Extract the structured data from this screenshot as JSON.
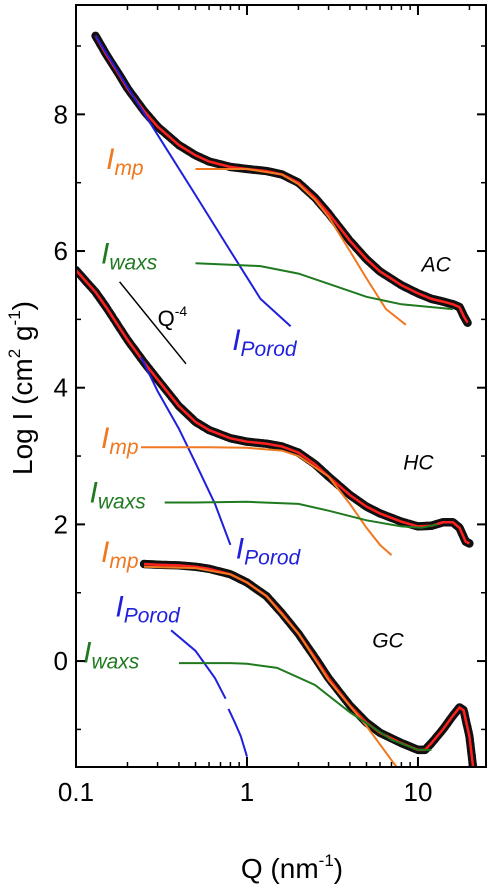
{
  "chart_data": {
    "type": "line",
    "x_scale": "log",
    "xlim": [
      0.1,
      25
    ],
    "ylim": [
      -1.55,
      9.6
    ],
    "xlabel": "Q (nm",
    "xlabel_sup": "-1",
    "xlabel_end": ")",
    "ylabel": "Log I (cm",
    "ylabel_sup1": "2",
    "ylabel_mid": " g",
    "ylabel_sup2": "-1",
    "ylabel_end": ")",
    "x_ticks": [
      {
        "value": 0.1,
        "label": "0.1"
      },
      {
        "value": 1,
        "label": "1"
      },
      {
        "value": 10,
        "label": "10"
      }
    ],
    "y_ticks": [
      {
        "value": 0,
        "label": "0"
      },
      {
        "value": 2,
        "label": "2"
      },
      {
        "value": 4,
        "label": "4"
      },
      {
        "value": 6,
        "label": "6"
      },
      {
        "value": 8,
        "label": "8"
      }
    ],
    "colors": {
      "data": "#000000",
      "fit": "#ff2020",
      "porod": "#1f1fdc",
      "mp": "#f07820",
      "waxs": "#1f7a1f",
      "slope": "#000000"
    },
    "samples": [
      {
        "name": "AC",
        "label_at": [
          10.5,
          5.7
        ],
        "data": [
          [
            0.13,
            9.15
          ],
          [
            0.15,
            8.88
          ],
          [
            0.18,
            8.57
          ],
          [
            0.2,
            8.38
          ],
          [
            0.25,
            8.05
          ],
          [
            0.3,
            7.82
          ],
          [
            0.4,
            7.55
          ],
          [
            0.5,
            7.4
          ],
          [
            0.6,
            7.31
          ],
          [
            0.8,
            7.23
          ],
          [
            1.0,
            7.2
          ],
          [
            1.3,
            7.17
          ],
          [
            1.6,
            7.12
          ],
          [
            2.0,
            7.0
          ],
          [
            2.5,
            6.78
          ],
          [
            3.0,
            6.55
          ],
          [
            4.0,
            6.15
          ],
          [
            5.0,
            5.88
          ],
          [
            6.0,
            5.7
          ],
          [
            8.0,
            5.5
          ],
          [
            10.0,
            5.38
          ],
          [
            12.0,
            5.3
          ],
          [
            14.0,
            5.26
          ],
          [
            16.0,
            5.22
          ],
          [
            17.5,
            5.18
          ],
          [
            18.5,
            5.05
          ],
          [
            19.5,
            4.95
          ]
        ],
        "porod": [
          [
            0.13,
            9.15
          ],
          [
            0.2,
            8.4
          ],
          [
            0.3,
            7.7
          ],
          [
            0.5,
            6.82
          ],
          [
            0.8,
            6.0
          ],
          [
            1.2,
            5.3
          ],
          [
            1.8,
            4.9
          ]
        ],
        "mp": [
          [
            0.5,
            7.2
          ],
          [
            1.0,
            7.2
          ],
          [
            1.6,
            7.12
          ],
          [
            2.0,
            6.98
          ],
          [
            2.5,
            6.75
          ],
          [
            3.0,
            6.5
          ],
          [
            4.0,
            6.0
          ],
          [
            5.0,
            5.6
          ],
          [
            6.5,
            5.15
          ],
          [
            8.5,
            4.92
          ]
        ],
        "waxs": [
          [
            0.5,
            5.82
          ],
          [
            0.8,
            5.8
          ],
          [
            1.2,
            5.78
          ],
          [
            2.0,
            5.67
          ],
          [
            3.0,
            5.52
          ],
          [
            5.0,
            5.33
          ],
          [
            8.0,
            5.22
          ],
          [
            12.0,
            5.18
          ],
          [
            16.0,
            5.15
          ]
        ],
        "mp_label_at": [
          0.15,
          7.2
        ],
        "waxs_label_at": [
          0.14,
          5.82
        ],
        "porod_label_at": [
          0.82,
          4.55
        ]
      },
      {
        "name": "HC",
        "label_at": [
          8.2,
          2.8
        ],
        "data": [
          [
            0.1,
            5.72
          ],
          [
            0.13,
            5.4
          ],
          [
            0.15,
            5.18
          ],
          [
            0.2,
            4.7
          ],
          [
            0.25,
            4.37
          ],
          [
            0.3,
            4.12
          ],
          [
            0.4,
            3.73
          ],
          [
            0.5,
            3.5
          ],
          [
            0.6,
            3.38
          ],
          [
            0.8,
            3.26
          ],
          [
            1.0,
            3.21
          ],
          [
            1.3,
            3.18
          ],
          [
            1.6,
            3.14
          ],
          [
            2.0,
            3.05
          ],
          [
            2.5,
            2.88
          ],
          [
            3.0,
            2.7
          ],
          [
            4.0,
            2.43
          ],
          [
            5.0,
            2.26
          ],
          [
            6.0,
            2.16
          ],
          [
            8.0,
            2.04
          ],
          [
            10.0,
            1.97
          ],
          [
            12.0,
            1.98
          ],
          [
            14.0,
            2.03
          ],
          [
            16.0,
            2.03
          ],
          [
            17.5,
            1.95
          ],
          [
            19.0,
            1.75
          ],
          [
            20.0,
            1.72
          ]
        ],
        "porod": [
          [
            0.24,
            4.45
          ],
          [
            0.3,
            3.95
          ],
          [
            0.4,
            3.4
          ],
          [
            0.5,
            2.9
          ],
          [
            0.65,
            2.3
          ],
          [
            0.8,
            1.7
          ]
        ],
        "mp": [
          [
            0.24,
            3.13
          ],
          [
            0.6,
            3.13
          ],
          [
            1.0,
            3.12
          ],
          [
            1.6,
            3.08
          ],
          [
            2.0,
            3.0
          ],
          [
            3.0,
            2.7
          ],
          [
            4.0,
            2.3
          ],
          [
            5.0,
            1.95
          ],
          [
            6.0,
            1.7
          ],
          [
            7.0,
            1.55
          ]
        ],
        "waxs": [
          [
            0.33,
            2.32
          ],
          [
            0.5,
            2.32
          ],
          [
            1.0,
            2.33
          ],
          [
            2.0,
            2.3
          ],
          [
            3.0,
            2.2
          ],
          [
            5.0,
            2.06
          ],
          [
            8.0,
            1.97
          ],
          [
            10.5,
            1.95
          ],
          [
            13.0,
            2.0
          ]
        ],
        "mp_label_at": [
          0.14,
          3.12
        ],
        "waxs_label_at": [
          0.12,
          2.32
        ],
        "porod_label_at": [
          0.86,
          1.5
        ]
      },
      {
        "name": "GC",
        "label_at": [
          5.4,
          0.2
        ],
        "data": [
          [
            0.25,
            1.42
          ],
          [
            0.3,
            1.41
          ],
          [
            0.4,
            1.4
          ],
          [
            0.5,
            1.38
          ],
          [
            0.6,
            1.35
          ],
          [
            0.8,
            1.27
          ],
          [
            1.0,
            1.15
          ],
          [
            1.3,
            0.95
          ],
          [
            1.6,
            0.7
          ],
          [
            2.0,
            0.4
          ],
          [
            2.5,
            0.05
          ],
          [
            3.0,
            -0.25
          ],
          [
            4.0,
            -0.65
          ],
          [
            5.0,
            -0.9
          ],
          [
            6.0,
            -1.05
          ],
          [
            8.0,
            -1.2
          ],
          [
            10.0,
            -1.3
          ],
          [
            11.0,
            -1.3
          ],
          [
            12.0,
            -1.2
          ],
          [
            14.0,
            -1.0
          ],
          [
            16.0,
            -0.8
          ],
          [
            17.5,
            -0.68
          ],
          [
            18.5,
            -0.72
          ],
          [
            20.0,
            -1.1
          ],
          [
            21.0,
            -1.55
          ]
        ],
        "porod": [
          [
            0.36,
            0.45
          ],
          [
            0.5,
            0.15
          ],
          [
            0.65,
            -0.25
          ],
          [
            0.75,
            -0.55
          ]
        ],
        "porod2": [
          [
            0.78,
            -0.7
          ],
          [
            0.85,
            -0.9
          ],
          [
            0.92,
            -1.1
          ],
          [
            1.0,
            -1.4
          ]
        ],
        "mp": [
          [
            0.25,
            1.38
          ],
          [
            0.5,
            1.36
          ],
          [
            0.8,
            1.27
          ],
          [
            1.0,
            1.15
          ],
          [
            1.3,
            0.95
          ],
          [
            2.0,
            0.4
          ],
          [
            3.0,
            -0.28
          ],
          [
            5.0,
            -0.95
          ],
          [
            7.0,
            -1.45
          ],
          [
            7.5,
            -1.55
          ]
        ],
        "waxs": [
          [
            0.4,
            -0.03
          ],
          [
            0.8,
            -0.03
          ],
          [
            1.0,
            -0.04
          ],
          [
            1.5,
            -0.1
          ],
          [
            2.5,
            -0.35
          ],
          [
            4.0,
            -0.75
          ],
          [
            7.0,
            -1.15
          ],
          [
            10.0,
            -1.3
          ],
          [
            12.0,
            -1.3
          ]
        ],
        "mp_label_at": [
          0.14,
          1.45
        ],
        "waxs_label_at": [
          0.11,
          -0.02
        ],
        "porod_label_at": [
          0.17,
          0.65
        ]
      }
    ],
    "annotations": {
      "I": "I",
      "mp": "mp",
      "waxs": "waxs",
      "porod": "Porod"
    },
    "slope_guide": {
      "label": "Q",
      "label_sup": "-4",
      "line": [
        [
          0.18,
          5.55
        ],
        [
          0.44,
          4.35
        ]
      ],
      "label_at": [
        0.3,
        4.9
      ]
    }
  }
}
